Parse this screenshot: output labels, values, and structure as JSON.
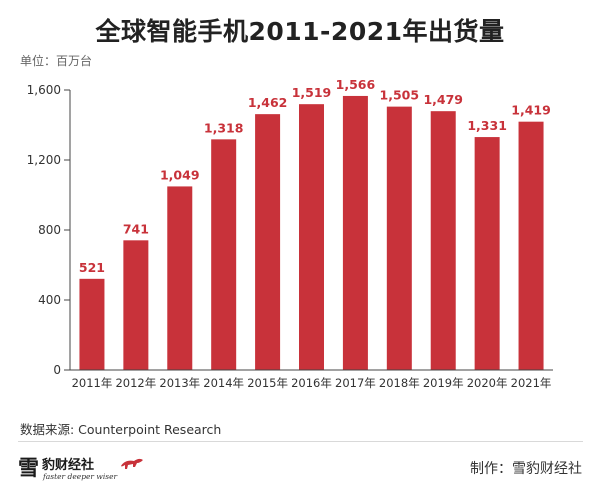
{
  "header": {
    "title": "全球智能手机2011-2021年出货量",
    "unit": "单位：百万台"
  },
  "chart_data": {
    "type": "bar",
    "title": "全球智能手机2011-2021年出货量",
    "ylabel": "单位：百万台",
    "xlabel": "",
    "categories": [
      "2011年",
      "2012年",
      "2013年",
      "2014年",
      "2015年",
      "2016年",
      "2017年",
      "2018年",
      "2019年",
      "2020年",
      "2021年"
    ],
    "values": [
      521,
      741,
      1049,
      1318,
      1462,
      1519,
      1566,
      1505,
      1479,
      1331,
      1419
    ],
    "data_labels": [
      "521",
      "741",
      "1,049",
      "1,318",
      "1,462",
      "1,519",
      "1,566",
      "1,505",
      "1,479",
      "1,331",
      "1,419"
    ],
    "ylim": [
      0,
      1600
    ],
    "yticks": [
      0,
      400,
      800,
      1200,
      1600
    ],
    "ytick_labels": [
      "0",
      "400",
      "800",
      "1,200",
      "1,600"
    ],
    "grid": false,
    "bar_color": "#c8323a",
    "label_color": "#c8323a"
  },
  "footer": {
    "source": "数据来源: Counterpoint Research",
    "producer": "制作：雪豹财经社"
  },
  "logo": {
    "main": "雪",
    "sub": "豹财经社",
    "slogan": "faster deeper wiser"
  }
}
